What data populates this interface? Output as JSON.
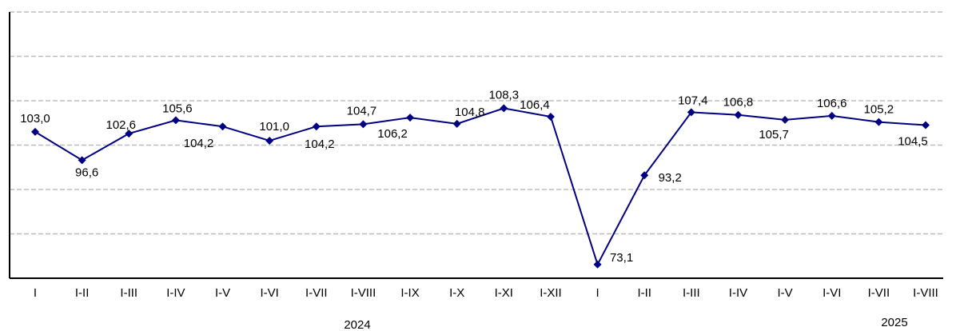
{
  "chart_data": {
    "type": "line",
    "categories": [
      "I",
      "I-II",
      "I-III",
      "I-IV",
      "I-V",
      "I-VI",
      "I-VII",
      "I-VIII",
      "I-IX",
      "I-X",
      "I-XI",
      "I-XII",
      "I",
      "I-II",
      "I-III",
      "I-IV",
      "I-V",
      "I-VI",
      "I-VII",
      "I-VIII"
    ],
    "groups": [
      "2024",
      "2025"
    ],
    "series": [
      {
        "color": "#000080",
        "values": [
          103.0,
          96.6,
          102.6,
          105.6,
          104.2,
          101.0,
          104.2,
          104.7,
          106.2,
          104.8,
          108.3,
          106.4,
          73.1,
          93.2,
          107.4,
          106.8,
          105.7,
          106.6,
          105.2,
          104.5
        ],
        "value_labels": [
          "103,0",
          "96,6",
          "102,6",
          "105,6",
          "104,2",
          "101,0",
          "104,2",
          "104,7",
          "106,2",
          "104,8",
          "108,3",
          "106,4",
          "73,1",
          "93,2",
          "107,4",
          "106,8",
          "105,7",
          "106,6",
          "105,2",
          "104,5"
        ]
      }
    ],
    "ylim": [
      70,
      130
    ],
    "yticks": [
      70,
      80,
      90,
      100,
      110,
      120,
      130
    ],
    "grid": true
  }
}
